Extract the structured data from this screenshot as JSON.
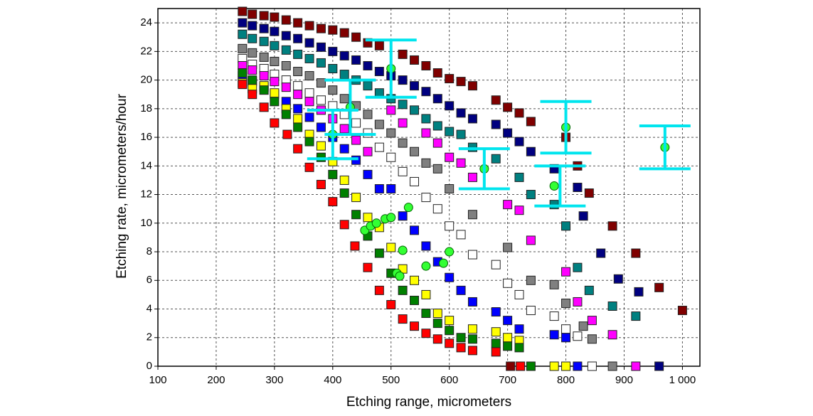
{
  "chart_data": {
    "type": "scatter",
    "x_label": "Etching range, micrometers",
    "y_label": "Etching rate, micrometers/hour",
    "xlim": [
      100,
      1030
    ],
    "ylim": [
      0,
      25
    ],
    "xticks": [
      100,
      200,
      300,
      400,
      500,
      600,
      700,
      800,
      900,
      {
        "value": 1000,
        "label": "1 000"
      }
    ],
    "yticks": [
      0,
      2,
      4,
      6,
      8,
      10,
      12,
      14,
      16,
      18,
      20,
      22,
      24
    ],
    "grid": true,
    "series": [
      {
        "color": "#800000",
        "marker": "square",
        "x": [
          245,
          262,
          282,
          300,
          320,
          340,
          360,
          380,
          400,
          420,
          440,
          460,
          480,
          520,
          540,
          560,
          580,
          600,
          620,
          640,
          680,
          700,
          720,
          740,
          800,
          820,
          840,
          880,
          920,
          960,
          1000,
          705
        ],
        "values": [
          24.8,
          24.6,
          24.5,
          24.4,
          24.2,
          24,
          23.8,
          23.6,
          23.5,
          23.3,
          23,
          22.6,
          22.4,
          21.8,
          21.4,
          21,
          20.5,
          20.1,
          19.9,
          19.6,
          18.6,
          18.1,
          17.7,
          17.1,
          16,
          14,
          12.1,
          9.8,
          7.9,
          5.5,
          3.9,
          0
        ]
      },
      {
        "color": "#000080",
        "marker": "square",
        "x": [
          245,
          262,
          282,
          300,
          320,
          340,
          360,
          380,
          400,
          420,
          440,
          460,
          480,
          500,
          520,
          540,
          560,
          580,
          600,
          620,
          640,
          680,
          700,
          720,
          740,
          780,
          820,
          830,
          860,
          890,
          925,
          960
        ],
        "values": [
          24,
          23.8,
          23.6,
          23.4,
          23.1,
          22.9,
          22.6,
          22.3,
          22,
          21.7,
          21.4,
          21,
          20.6,
          20.3,
          20,
          19.6,
          19.2,
          18.7,
          18.2,
          17.7,
          17.3,
          16.9,
          16.3,
          15.7,
          15,
          13.8,
          12.5,
          10.5,
          7.9,
          6.1,
          5.2,
          0
        ]
      },
      {
        "color": "#008080",
        "marker": "square",
        "x": [
          245,
          262,
          282,
          300,
          320,
          340,
          360,
          380,
          400,
          420,
          440,
          460,
          480,
          500,
          520,
          540,
          560,
          580,
          600,
          620,
          640,
          680,
          720,
          740,
          780,
          800,
          820,
          840,
          880,
          920
        ],
        "values": [
          23.2,
          22.9,
          22.7,
          22.4,
          22.1,
          21.8,
          21.5,
          21.2,
          20.8,
          20.4,
          20,
          19.6,
          19.1,
          18.7,
          18.3,
          17.9,
          17.3,
          16.8,
          16.4,
          16.2,
          15.3,
          14.5,
          13.2,
          12,
          11.3,
          9.8,
          6.9,
          5.3,
          4.2,
          3.5
        ]
      },
      {
        "color": "#808080",
        "marker": "square",
        "x": [
          245,
          262,
          282,
          300,
          320,
          340,
          360,
          380,
          400,
          420,
          440,
          460,
          480,
          500,
          520,
          540,
          560,
          580,
          600,
          640,
          700,
          740,
          780,
          800,
          830,
          845,
          880
        ],
        "values": [
          22.2,
          21.9,
          21.6,
          21.3,
          21,
          20.6,
          20.3,
          19.8,
          19.3,
          18.7,
          18.2,
          17.6,
          16.9,
          16.3,
          15.6,
          15,
          14.2,
          13.8,
          12.4,
          10.6,
          8.3,
          6,
          5.7,
          4.4,
          2.8,
          1.9,
          0
        ]
      },
      {
        "color": "#ffffff",
        "marker": "square",
        "x": [
          245,
          262,
          282,
          300,
          320,
          340,
          360,
          380,
          400,
          420,
          440,
          460,
          480,
          500,
          520,
          540,
          560,
          580,
          600,
          620,
          640,
          680,
          700,
          720,
          740,
          780,
          800,
          820,
          845
        ],
        "values": [
          21.5,
          21.1,
          20.8,
          20.4,
          20,
          19.6,
          19.1,
          18.6,
          18.2,
          17.6,
          17,
          16.3,
          15.3,
          14.6,
          13.6,
          12.9,
          11.8,
          11,
          9.8,
          9.2,
          7.8,
          7.1,
          5.8,
          5,
          3.9,
          3.5,
          2.6,
          2.1,
          0
        ]
      },
      {
        "color": "#ff00ff",
        "marker": "square",
        "x": [
          245,
          262,
          282,
          300,
          320,
          340,
          360,
          380,
          400,
          420,
          440,
          460,
          500,
          520,
          560,
          580,
          600,
          620,
          640,
          700,
          720,
          740,
          800,
          820,
          845,
          880,
          920
        ],
        "values": [
          21,
          20.7,
          20.3,
          19.9,
          19.5,
          19,
          18.5,
          17.9,
          17.3,
          16.6,
          15.8,
          15,
          17.9,
          17,
          16.3,
          15.6,
          14.6,
          14.2,
          13.2,
          11.3,
          10.9,
          8.8,
          6.6,
          4.5,
          3.2,
          2.2,
          0
        ]
      },
      {
        "color": "#0000ff",
        "marker": "square",
        "x": [
          245,
          262,
          282,
          300,
          320,
          340,
          360,
          380,
          400,
          420,
          440,
          460,
          480,
          500,
          520,
          540,
          560,
          580,
          600,
          620,
          640,
          680,
          700,
          720,
          780,
          800,
          820
        ],
        "values": [
          20.3,
          19.9,
          19.5,
          19,
          18.5,
          18,
          17.4,
          16.7,
          16,
          15.2,
          14.4,
          13.4,
          12.4,
          12.4,
          10.5,
          9.5,
          8.4,
          7.3,
          6.2,
          5.3,
          4.5,
          3.8,
          3.2,
          2.6,
          2.2,
          2,
          0
        ]
      },
      {
        "color": "#ffff00",
        "marker": "square",
        "x": [
          245,
          262,
          282,
          300,
          320,
          340,
          360,
          380,
          400,
          420,
          440,
          460,
          480,
          500,
          520,
          540,
          560,
          580,
          600,
          640,
          680,
          700,
          720,
          780,
          800
        ],
        "values": [
          19.8,
          19.4,
          19.6,
          19.1,
          18,
          17.3,
          16.2,
          15.4,
          14.3,
          13,
          11.8,
          10.4,
          9.7,
          8.3,
          6.8,
          6,
          5,
          3.7,
          3.2,
          2.6,
          2.4,
          2,
          1.8,
          0,
          0
        ]
      },
      {
        "color": "#008000",
        "marker": "square",
        "x": [
          245,
          262,
          282,
          300,
          320,
          340,
          360,
          380,
          400,
          420,
          440,
          460,
          480,
          500,
          520,
          540,
          560,
          580,
          600,
          620,
          640,
          680,
          700,
          720,
          740
        ],
        "values": [
          20.5,
          20,
          19.3,
          18.5,
          17.6,
          16.7,
          15.7,
          14.6,
          13.4,
          12.1,
          10.6,
          9.1,
          7.9,
          6.5,
          5.3,
          4.6,
          3.7,
          3,
          2.5,
          2,
          1.9,
          1.6,
          1.4,
          1.3,
          0
        ]
      },
      {
        "color": "#ff0000",
        "marker": "square",
        "x": [
          245,
          262,
          282,
          300,
          322,
          340,
          360,
          380,
          400,
          420,
          438,
          460,
          480,
          500,
          520,
          540,
          560,
          580,
          600,
          620,
          640,
          680,
          722
        ],
        "values": [
          19.7,
          19,
          18.1,
          17,
          16.2,
          15.2,
          13.9,
          12.7,
          11.5,
          9.9,
          8.4,
          6.9,
          5.3,
          4.3,
          3.3,
          2.8,
          2.3,
          1.9,
          1.6,
          1.3,
          1.1,
          1,
          0
        ]
      },
      {
        "color": "#33ff33",
        "marker": "circle",
        "x": [
          400,
          430,
          500,
          530,
          455,
          465,
          475,
          490,
          500,
          520,
          510,
          515,
          560,
          590,
          600,
          660,
          780,
          800,
          970
        ],
        "values": [
          16.2,
          18.1,
          20.8,
          11.1,
          9.5,
          9.8,
          10,
          10.3,
          10.4,
          8.1,
          6.5,
          6.3,
          7,
          7.2,
          8,
          13.8,
          12.6,
          16.7,
          15.3
        ]
      }
    ],
    "error_bars": {
      "color": "#00e5ee",
      "x": [
        400,
        430,
        500,
        660,
        790,
        800,
        970
      ],
      "values": [
        16.2,
        18.1,
        20.8,
        13.8,
        12.6,
        16.7,
        15.3
      ],
      "errors": [
        1.7,
        1.9,
        2,
        1.4,
        1.4,
        1.8,
        1.5
      ]
    }
  }
}
